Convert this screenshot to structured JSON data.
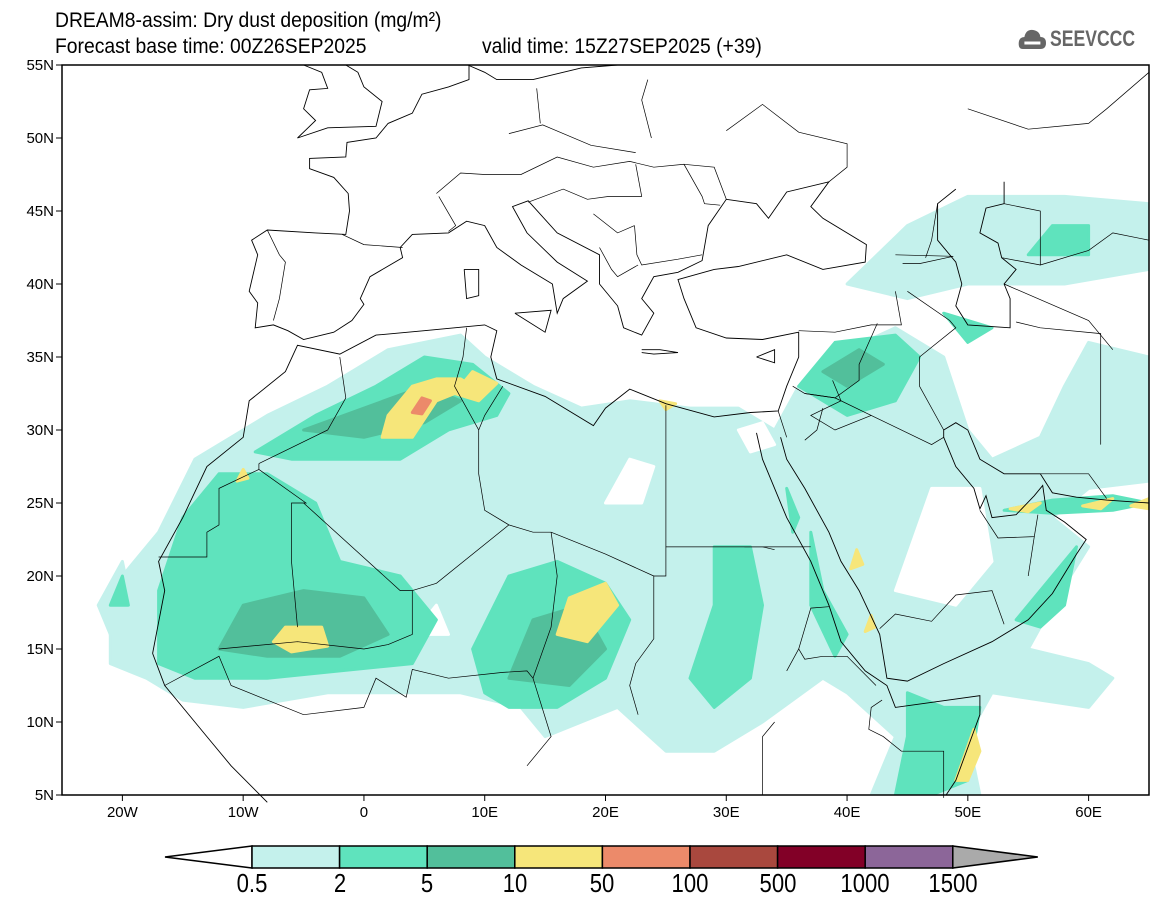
{
  "header": {
    "title": "DREAM8-assim: Dry dust deposition (mg/m²)",
    "base_time": "Forecast base time: 00Z26SEP2025",
    "valid_time": "valid time: 15Z27SEP2025 (+39)",
    "logo_text": "SEEVCCC"
  },
  "map": {
    "lon_range": [
      -25,
      65
    ],
    "lat_range": [
      5,
      55
    ],
    "lon_labels": [
      "20W",
      "10W",
      "0",
      "10E",
      "20E",
      "30E",
      "40E",
      "50E",
      "60E"
    ],
    "lat_labels": [
      "5N",
      "10N",
      "15N",
      "20N",
      "25N",
      "30N",
      "35N",
      "40N",
      "45N",
      "50N",
      "55N"
    ]
  },
  "legend": {
    "labels": [
      "0.5",
      "2",
      "5",
      "10",
      "50",
      "100",
      "500",
      "1000",
      "1500"
    ],
    "colors": [
      "#ffffff",
      "#c4f1ec",
      "#5fe3bd",
      "#52bf9b",
      "#f6e67a",
      "#ec8a6a",
      "#a9483e",
      "#820027",
      "#8c6699",
      "#aaaaaa"
    ]
  }
}
